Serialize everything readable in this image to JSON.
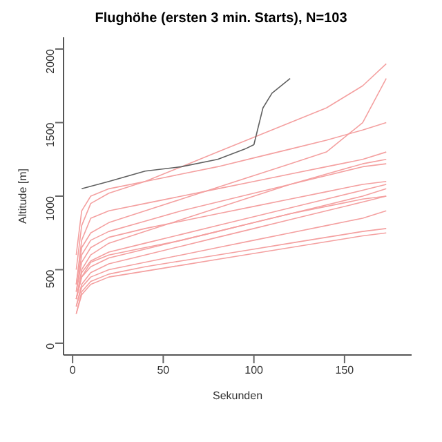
{
  "chart_data": {
    "type": "line",
    "title": "Flughöhe (ersten 3 min. Starts), N=103",
    "xlabel": "Sekunden",
    "ylabel": "Altitude [m]",
    "x": [
      2,
      5,
      10,
      20,
      40,
      60,
      80,
      100,
      120,
      140,
      160,
      173
    ],
    "xlim": [
      -5,
      187
    ],
    "xticks": [
      0,
      50,
      100,
      150
    ],
    "ylim": [
      -80,
      2080
    ],
    "yticks": [
      0,
      500,
      1000,
      1500,
      2000
    ],
    "marker": "none",
    "line_style": "solid",
    "series": [
      {
        "color": "#f4a0a0",
        "values": [
          250,
          380,
          450,
          500,
          550,
          600,
          650,
          700,
          750,
          800,
          850,
          900
        ]
      },
      {
        "color": "#f4a0a0",
        "values": [
          300,
          450,
          550,
          600,
          650,
          700,
          760,
          820,
          880,
          930,
          980,
          1000
        ]
      },
      {
        "color": "#f4a0a0",
        "values": [
          200,
          350,
          420,
          470,
          520,
          560,
          600,
          640,
          680,
          720,
          760,
          780
        ]
      },
      {
        "color": "#f4a0a0",
        "values": [
          350,
          550,
          650,
          720,
          780,
          830,
          880,
          930,
          980,
          1030,
          1080,
          1100
        ]
      },
      {
        "color": "#f4a0a0",
        "values": [
          400,
          700,
          850,
          900,
          950,
          1000,
          1050,
          1100,
          1150,
          1200,
          1250,
          1300
        ]
      },
      {
        "color": "#f4a0a0",
        "values": [
          300,
          500,
          600,
          680,
          760,
          840,
          920,
          1000,
          1080,
          1150,
          1220,
          1250
        ]
      },
      {
        "color": "#f4a0a0",
        "values": [
          250,
          400,
          480,
          540,
          600,
          660,
          720,
          780,
          840,
          900,
          960,
          1000
        ]
      },
      {
        "color": "#f4a0a0",
        "values": [
          600,
          900,
          1000,
          1050,
          1100,
          1150,
          1200,
          1260,
          1320,
          1380,
          1450,
          1500
        ]
      },
      {
        "color": "#f4a0a0",
        "values": [
          300,
          480,
          560,
          620,
          680,
          740,
          800,
          860,
          920,
          980,
          1040,
          1080
        ]
      },
      {
        "color": "#f4a0a0",
        "values": [
          500,
          800,
          950,
          1020,
          1100,
          1200,
          1300,
          1400,
          1500,
          1600,
          1750,
          1900
        ]
      },
      {
        "color": "#f4a0a0",
        "values": [
          200,
          330,
          400,
          450,
          490,
          530,
          570,
          610,
          650,
          690,
          730,
          750
        ]
      },
      {
        "color": "#f4a0a0",
        "values": [
          350,
          600,
          700,
          760,
          830,
          900,
          960,
          1020,
          1080,
          1140,
          1200,
          1220
        ]
      },
      {
        "color": "#f4a0a0",
        "values": [
          300,
          450,
          520,
          580,
          640,
          700,
          760,
          820,
          880,
          940,
          1000,
          1050
        ]
      },
      {
        "color": "#f4a0a0",
        "values": [
          400,
          650,
          750,
          820,
          900,
          980,
          1060,
          1140,
          1220,
          1300,
          1500,
          1800
        ]
      },
      {
        "color": "#606060",
        "x": [
          5,
          20,
          40,
          60,
          80,
          95,
          100,
          105,
          110,
          120
        ],
        "values": [
          1050,
          1100,
          1170,
          1200,
          1250,
          1320,
          1350,
          1600,
          1700,
          1800
        ]
      }
    ]
  }
}
